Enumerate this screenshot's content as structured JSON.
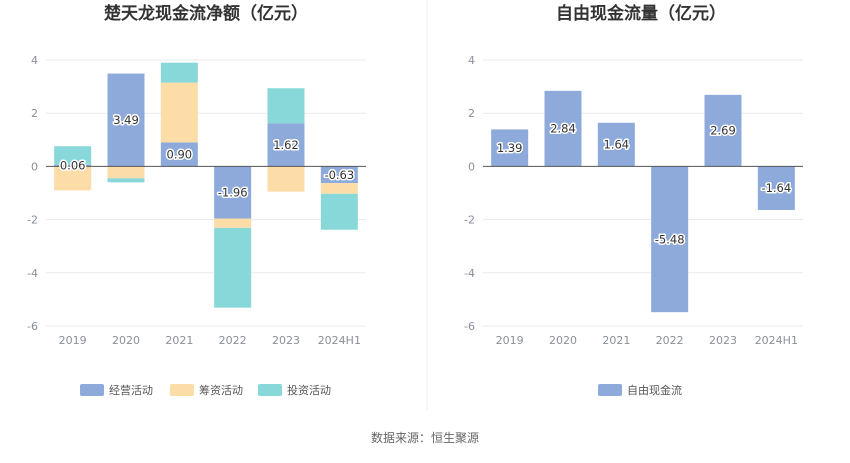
{
  "source": "数据来源：恒生聚源",
  "chart_data": [
    {
      "type": "bar",
      "stacked": true,
      "title": "楚天龙现金流净额（亿元）",
      "categories": [
        "2019",
        "2020",
        "2021",
        "2022",
        "2023",
        "2024H1"
      ],
      "ylim": [
        -6,
        4
      ],
      "yticks": [
        4,
        2,
        0,
        -2,
        -4,
        -6
      ],
      "grid": true,
      "legend_position": "bottom",
      "series": [
        {
          "name": "经营活动",
          "color": "#8eaadb",
          "values": [
            0.06,
            3.49,
            0.9,
            -1.96,
            1.62,
            -0.63
          ],
          "show_labels": true
        },
        {
          "name": "筹资活动",
          "color": "#fcdca7",
          "values": [
            -0.9,
            -0.45,
            2.25,
            -0.35,
            -0.95,
            -0.4
          ]
        },
        {
          "name": "投资活动",
          "color": "#88d8d9",
          "values": [
            0.7,
            -0.15,
            0.75,
            -3.0,
            1.32,
            -1.35
          ]
        }
      ],
      "labels": [
        "0.06",
        "3.49",
        "0.90",
        "-1.96",
        "1.62",
        "-0.63"
      ]
    },
    {
      "type": "bar",
      "title": "自由现金流量（亿元）",
      "categories": [
        "2019",
        "2020",
        "2021",
        "2022",
        "2023",
        "2024H1"
      ],
      "ylim": [
        -6,
        4
      ],
      "yticks": [
        4,
        2,
        0,
        -2,
        -4,
        -6
      ],
      "grid": true,
      "legend_position": "bottom",
      "series": [
        {
          "name": "自由现金流",
          "color": "#8eaadb",
          "values": [
            1.39,
            2.84,
            1.64,
            -5.48,
            2.69,
            -1.64
          ],
          "show_labels": true
        }
      ],
      "labels": [
        "1.39",
        "2.84",
        "1.64",
        "-5.48",
        "2.69",
        "-1.64"
      ]
    }
  ]
}
